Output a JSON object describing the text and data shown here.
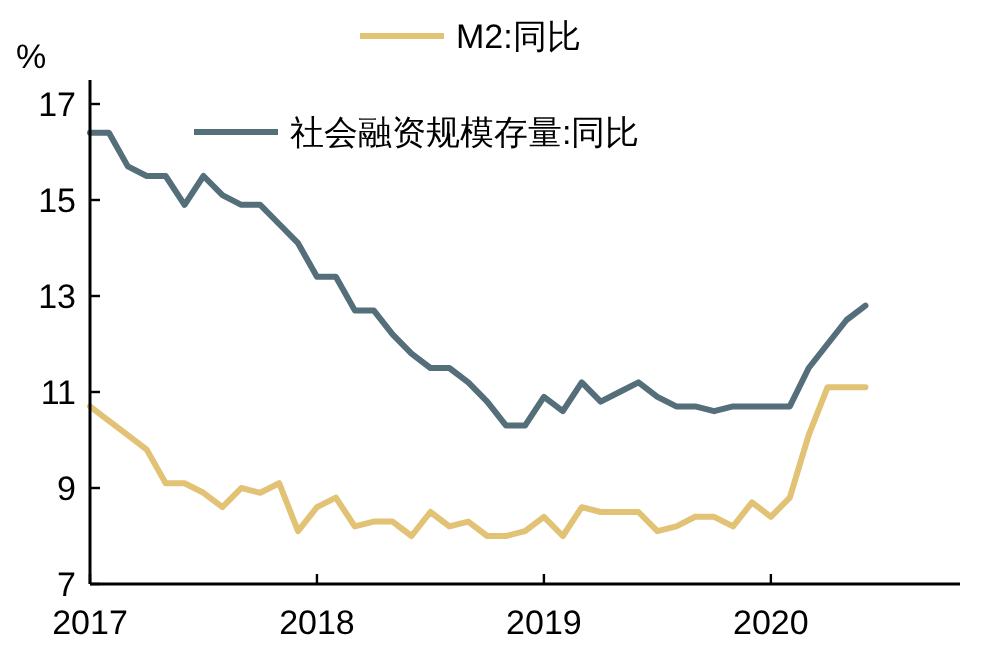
{
  "chart_data": {
    "type": "line",
    "ylabel": "%",
    "legend": "top",
    "grid": false,
    "marker": "none",
    "line_style": "solid",
    "x": [
      "2017-01",
      "2017-02",
      "2017-03",
      "2017-04",
      "2017-05",
      "2017-06",
      "2017-07",
      "2017-08",
      "2017-09",
      "2017-10",
      "2017-11",
      "2017-12",
      "2018-01",
      "2018-02",
      "2018-03",
      "2018-04",
      "2018-05",
      "2018-06",
      "2018-07",
      "2018-08",
      "2018-09",
      "2018-10",
      "2018-11",
      "2018-12",
      "2019-01",
      "2019-02",
      "2019-03",
      "2019-04",
      "2019-05",
      "2019-06",
      "2019-07",
      "2019-08",
      "2019-09",
      "2019-10",
      "2019-11",
      "2019-12",
      "2020-01",
      "2020-02",
      "2020-03",
      "2020-04",
      "2020-05",
      "2020-06"
    ],
    "xlim": [
      "2017-01",
      "2020-11"
    ],
    "xticks": [
      {
        "value": "2017-01",
        "label": "2017"
      },
      {
        "value": "2018-01",
        "label": "2018"
      },
      {
        "value": "2019-01",
        "label": "2019"
      },
      {
        "value": "2020-01",
        "label": "2020"
      }
    ],
    "ylim": [
      7,
      17.5
    ],
    "yticks": [
      7,
      9,
      11,
      13,
      15,
      17
    ],
    "series": [
      {
        "name": "M2:同比",
        "color": "#e2c275",
        "values": [
          10.7,
          10.4,
          10.1,
          9.8,
          9.1,
          9.1,
          8.9,
          8.6,
          9.0,
          8.9,
          9.1,
          8.1,
          8.6,
          8.8,
          8.2,
          8.3,
          8.3,
          8.0,
          8.5,
          8.2,
          8.3,
          8.0,
          8.0,
          8.1,
          8.4,
          8.0,
          8.6,
          8.5,
          8.5,
          8.5,
          8.1,
          8.2,
          8.4,
          8.4,
          8.2,
          8.7,
          8.4,
          8.8,
          10.1,
          11.1,
          11.1,
          11.1
        ]
      },
      {
        "name": "社会融资规模存量:同比",
        "color": "#546e7a",
        "values": [
          16.4,
          16.4,
          15.7,
          15.5,
          15.5,
          14.9,
          15.5,
          15.1,
          14.9,
          14.9,
          14.5,
          14.1,
          13.4,
          13.4,
          12.7,
          12.7,
          12.2,
          11.8,
          11.5,
          11.5,
          11.2,
          10.8,
          10.3,
          10.3,
          10.9,
          10.6,
          11.2,
          10.8,
          11.0,
          11.2,
          10.9,
          10.7,
          10.7,
          10.6,
          10.7,
          10.7,
          10.7,
          10.7,
          11.5,
          12.0,
          12.5,
          12.8
        ]
      }
    ]
  }
}
